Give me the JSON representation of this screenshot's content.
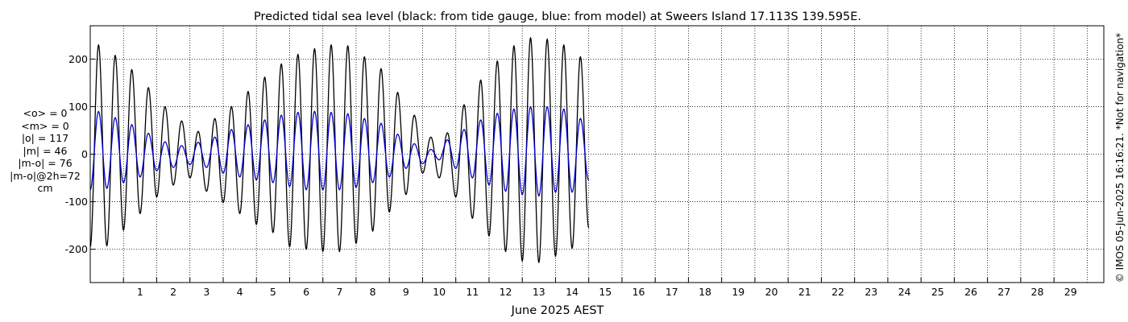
{
  "chart_data": {
    "type": "line",
    "title": "Predicted tidal sea level (black: from tide gauge, blue: from model) at Sweers Island 17.113S 139.595E.",
    "xlabel": "June 2025 AEST",
    "ylabel": "",
    "xlim": [
      0.0,
      30.5
    ],
    "ylim": [
      -270,
      270
    ],
    "yticks": [
      -200,
      -100,
      0,
      100,
      200
    ],
    "xticks": [
      "1",
      "2",
      "3",
      "4",
      "5",
      "6",
      "7",
      "8",
      "9",
      "10",
      "11",
      "12",
      "13",
      "14",
      "15",
      "16",
      "17",
      "18",
      "19",
      "20",
      "21",
      "22",
      "23",
      "24",
      "25",
      "26",
      "27",
      "28",
      "29"
    ],
    "grid": true,
    "side_note": "© IMOS 05-Jun-2025 16:16:21. *Not for navigation*",
    "series": [
      {
        "name": "tide gauge",
        "color": "#000000",
        "step_days": 0.25,
        "x_start": 0.0,
        "values": [
          -195,
          230,
          -193,
          208,
          -160,
          178,
          -125,
          140,
          -90,
          100,
          -65,
          70,
          -50,
          48,
          -78,
          75,
          -102,
          100,
          -125,
          132,
          -148,
          162,
          -165,
          190,
          -195,
          210,
          -200,
          222,
          -205,
          230,
          -205,
          228,
          -188,
          205,
          -162,
          180,
          -122,
          130,
          -85,
          82,
          -40,
          36,
          -50,
          45,
          -90,
          104,
          -135,
          156,
          -172,
          196,
          -205,
          228,
          -225,
          245,
          -228,
          242,
          -215,
          230,
          -198,
          205,
          -155
        ]
      },
      {
        "name": "model",
        "color": "#0000cc",
        "step_days": 0.25,
        "x_start": 0.0,
        "values": [
          -75,
          90,
          -72,
          77,
          -60,
          62,
          -48,
          44,
          -35,
          26,
          -28,
          18,
          -22,
          25,
          -28,
          36,
          -40,
          52,
          -48,
          62,
          -54,
          72,
          -60,
          82,
          -68,
          88,
          -75,
          90,
          -75,
          88,
          -75,
          85,
          -70,
          75,
          -60,
          65,
          -48,
          42,
          -30,
          22,
          -20,
          10,
          -12,
          30,
          -30,
          52,
          -50,
          72,
          -65,
          86,
          -78,
          95,
          -85,
          100,
          -88,
          100,
          -80,
          95,
          -80,
          75,
          -55
        ]
      }
    ]
  },
  "stats": {
    "lines": [
      "<o> = 0",
      "<m> = 0",
      "|o| = 117",
      "|m| = 46",
      "|m-o| = 76",
      "|m-o|@2h=72",
      "cm"
    ]
  }
}
